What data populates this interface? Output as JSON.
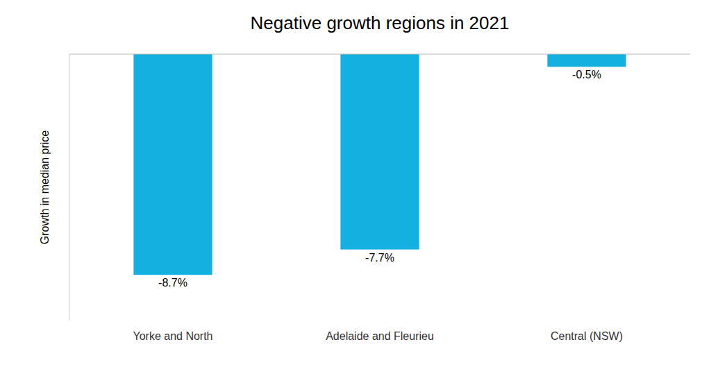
{
  "chart_data": {
    "type": "bar",
    "title": "Negative growth regions in 2021",
    "categories": [
      "Yorke and North",
      "Adelaide and Fleurieu",
      "Central (NSW)"
    ],
    "values": [
      -8.7,
      -7.7,
      -0.5
    ],
    "value_labels": [
      "-8.7%",
      "-7.7%",
      "-0.5%"
    ],
    "data_labels": true,
    "color": "#14b0e0",
    "ylabel": "Growth in median price",
    "ylim": [
      -10.5,
      0.0
    ],
    "tick_labels": "x",
    "grid": false
  }
}
